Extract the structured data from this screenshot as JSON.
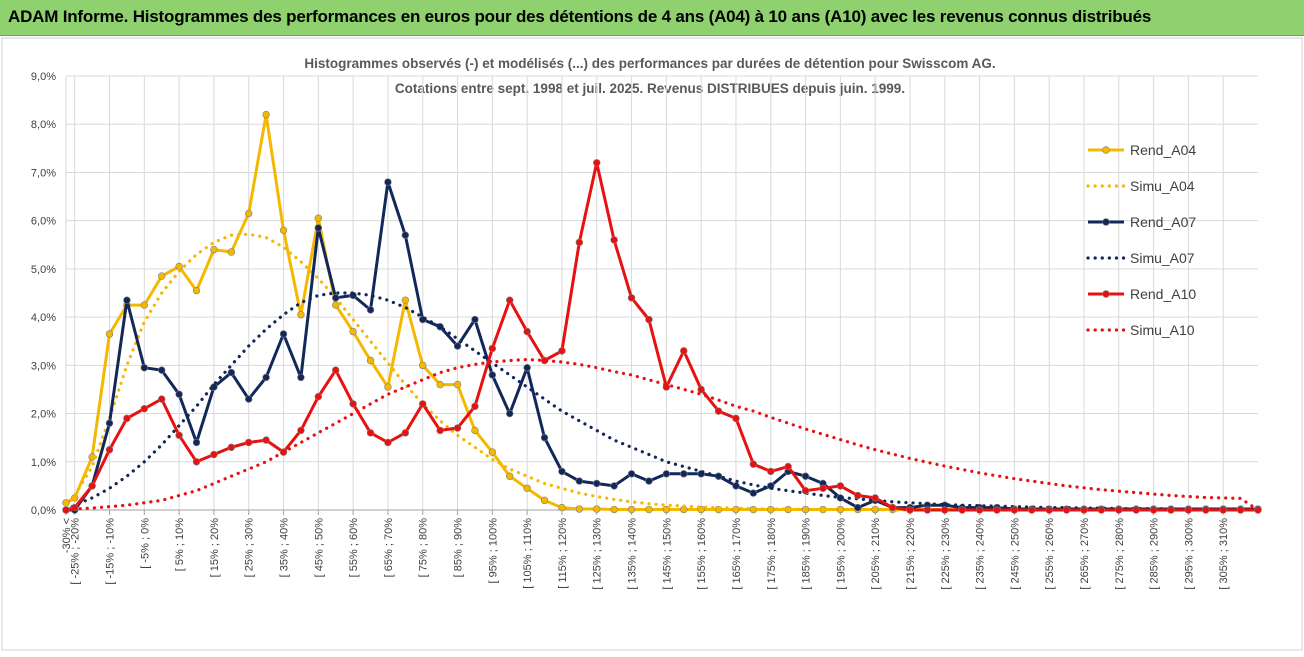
{
  "banner": {
    "title": "ADAM Informe. Histogrammes des performances en euros pour des détentions de 4 ans (A04) à 10 ans (A10) avec les revenus connus distribués"
  },
  "colors": {
    "a04": "#f5b800",
    "a07": "#12285a",
    "a10": "#e81010",
    "grid": "#d9d9d9",
    "banner_bg": "#8fd16f"
  },
  "chart_data": {
    "type": "line",
    "title_line1": "Histogrammes observés (-) et modélisés (...) des performances par durées de détention pour Swisscom AG.",
    "title_line2": "Cotations entre sept. 1998 et juil. 2025. Revenus DISTRIBUES depuis juin. 1999.",
    "xlabel": "",
    "ylabel": "",
    "ylim": [
      0,
      9
    ],
    "y_ticks": [
      "0,0%",
      "1,0%",
      "2,0%",
      "3,0%",
      "4,0%",
      "5,0%",
      "6,0%",
      "7,0%",
      "8,0%",
      "9,0%"
    ],
    "grid": true,
    "legend_position": "right",
    "categories": [
      "-30% <",
      "[ -25% ; -20%",
      "[ -15% ; -10%",
      "[ -5% ; 0%",
      "[ 5% ; 10%",
      "[ 15% ; 20%",
      "[ 25% ; 30%",
      "[ 35% ; 40%",
      "[ 45% ; 50%",
      "[ 55% ; 60%",
      "[ 65% ; 70%",
      "[ 75% ; 80%",
      "[ 85% ; 90%",
      "[ 95% ; 100%",
      "[ 105% ; 110%",
      "[ 115% ; 120%",
      "[ 125% ; 130%",
      "[ 135% ; 140%",
      "[ 145% ; 150%",
      "[ 155% ; 160%",
      "[ 165% ; 170%",
      "[ 175% ; 180%",
      "[ 185% ; 190%",
      "[ 195% ; 200%",
      "[ 205% ; 210%",
      "[ 215% ; 220%",
      "[ 225% ; 230%",
      "[ 235% ; 240%",
      "[ 245% ; 250%",
      "[ 255% ; 260%",
      "[ 265% ; 270%",
      "[ 275% ; 280%",
      "[ 285% ; 290%",
      "[ 295% ; 300%",
      "[ 305% ; 310%"
    ],
    "x": [
      -30,
      -27.5,
      -22.5,
      -17.5,
      -12.5,
      -7.5,
      -2.5,
      2.5,
      7.5,
      12.5,
      17.5,
      22.5,
      27.5,
      32.5,
      37.5,
      42.5,
      47.5,
      52.5,
      57.5,
      62.5,
      67.5,
      72.5,
      77.5,
      82.5,
      87.5,
      92.5,
      97.5,
      102.5,
      107.5,
      112.5,
      117.5,
      122.5,
      127.5,
      132.5,
      137.5,
      142.5,
      147.5,
      152.5,
      157.5,
      162.5,
      167.5,
      172.5,
      177.5,
      182.5,
      187.5,
      192.5,
      197.5,
      202.5,
      207.5,
      212.5,
      217.5,
      222.5,
      227.5,
      232.5,
      237.5,
      242.5,
      247.5,
      252.5,
      257.5,
      262.5,
      267.5,
      272.5,
      277.5,
      282.5,
      287.5,
      292.5,
      297.5,
      302.5,
      307.5,
      312.5
    ],
    "series": [
      {
        "name": "Rend_A04",
        "style": "solid",
        "color": "#f5b800",
        "values": [
          0.15,
          0.25,
          1.1,
          3.65,
          4.25,
          4.25,
          4.85,
          5.05,
          4.55,
          5.4,
          5.35,
          6.15,
          8.2,
          5.8,
          4.05,
          6.05,
          4.25,
          3.7,
          3.1,
          2.55,
          4.35,
          3.0,
          2.6,
          2.6,
          1.65,
          1.2,
          0.7,
          0.45,
          0.2,
          0.05,
          0.02,
          0.02,
          0.01,
          0.01,
          0.01,
          0.01,
          0.01,
          0.01,
          0.01,
          0.01,
          0.01,
          0.01,
          0.01,
          0.01,
          0.01,
          0.01,
          0.01,
          0.01,
          0.01,
          0.01,
          0.01,
          0.01,
          0.01,
          0.01,
          0.01,
          0.01,
          0.01,
          0.01,
          0.01,
          0.01,
          0.01,
          0.01,
          0.01,
          0.01,
          0.01,
          0.01,
          0.01,
          0.01,
          0.01,
          0.01
        ]
      },
      {
        "name": "Simu_A04",
        "style": "dotted",
        "color": "#f5b800",
        "values": [
          0.1,
          0.3,
          0.9,
          1.9,
          3.0,
          3.9,
          4.5,
          4.95,
          5.3,
          5.55,
          5.7,
          5.72,
          5.65,
          5.45,
          5.15,
          4.8,
          4.4,
          3.95,
          3.5,
          3.05,
          2.6,
          2.2,
          1.85,
          1.55,
          1.3,
          1.05,
          0.85,
          0.7,
          0.55,
          0.45,
          0.35,
          0.28,
          0.22,
          0.17,
          0.13,
          0.1,
          0.08,
          0.06,
          0.05,
          0.04,
          0.03,
          0.02,
          0.02,
          0.01,
          0.01,
          0.01,
          0.01,
          0.01,
          0.0,
          0.0,
          0.0,
          0.0,
          0.0,
          0.0,
          0.0,
          0.0,
          0.0,
          0.0,
          0.0,
          0.0,
          0.0,
          0.0,
          0.0,
          0.0,
          0.0,
          0.0,
          0.0,
          0.0,
          0.0,
          0.0
        ]
      },
      {
        "name": "Rend_A07",
        "style": "solid",
        "color": "#12285a",
        "values": [
          0.0,
          0.0,
          0.5,
          1.8,
          4.35,
          2.95,
          2.9,
          2.4,
          1.4,
          2.55,
          2.85,
          2.3,
          2.75,
          3.65,
          2.75,
          5.85,
          4.4,
          4.45,
          4.15,
          6.8,
          5.7,
          3.95,
          3.8,
          3.4,
          3.95,
          2.8,
          2.0,
          2.95,
          1.5,
          0.8,
          0.6,
          0.55,
          0.5,
          0.75,
          0.6,
          0.75,
          0.75,
          0.75,
          0.7,
          0.5,
          0.35,
          0.5,
          0.8,
          0.7,
          0.55,
          0.25,
          0.05,
          0.2,
          0.05,
          0.05,
          0.1,
          0.1,
          0.05,
          0.05,
          0.05,
          0.02,
          0.02,
          0.02,
          0.02,
          0.02,
          0.02,
          0.02,
          0.02,
          0.02,
          0.02,
          0.02,
          0.02,
          0.02,
          0.02,
          0.02
        ]
      },
      {
        "name": "Simu_A07",
        "style": "dotted",
        "color": "#12285a",
        "values": [
          0.0,
          0.1,
          0.25,
          0.45,
          0.7,
          1.0,
          1.35,
          1.75,
          2.15,
          2.6,
          3.0,
          3.4,
          3.75,
          4.05,
          4.3,
          4.45,
          4.5,
          4.5,
          4.45,
          4.35,
          4.2,
          4.0,
          3.8,
          3.55,
          3.3,
          3.05,
          2.8,
          2.55,
          2.3,
          2.05,
          1.85,
          1.65,
          1.45,
          1.3,
          1.15,
          1.0,
          0.9,
          0.8,
          0.7,
          0.6,
          0.52,
          0.45,
          0.4,
          0.35,
          0.3,
          0.26,
          0.23,
          0.2,
          0.17,
          0.15,
          0.13,
          0.11,
          0.1,
          0.09,
          0.08,
          0.07,
          0.06,
          0.05,
          0.05,
          0.04,
          0.04,
          0.03,
          0.03,
          0.03,
          0.02,
          0.02,
          0.02,
          0.02,
          0.02,
          0.01
        ]
      },
      {
        "name": "Rend_A10",
        "style": "solid",
        "color": "#e81010",
        "values": [
          0.0,
          0.05,
          0.5,
          1.25,
          1.9,
          2.1,
          2.3,
          1.55,
          1.0,
          1.15,
          1.3,
          1.4,
          1.45,
          1.2,
          1.65,
          2.35,
          2.9,
          2.2,
          1.6,
          1.4,
          1.6,
          2.2,
          1.65,
          1.7,
          2.15,
          3.35,
          4.35,
          3.7,
          3.1,
          3.3,
          5.55,
          7.2,
          5.6,
          4.4,
          3.95,
          2.55,
          3.3,
          2.5,
          2.05,
          1.9,
          0.95,
          0.8,
          0.9,
          0.4,
          0.45,
          0.5,
          0.3,
          0.25,
          0.05,
          0.0,
          0.0,
          0.0,
          0.0,
          0.0,
          0.0,
          0.0,
          0.0,
          0.0,
          0.0,
          0.0,
          0.0,
          0.0,
          0.0,
          0.0,
          0.0,
          0.0,
          0.0,
          0.0,
          0.0,
          0.0
        ]
      },
      {
        "name": "Simu_A10",
        "style": "dotted",
        "color": "#e81010",
        "values": [
          0.0,
          0.02,
          0.04,
          0.07,
          0.1,
          0.15,
          0.2,
          0.3,
          0.4,
          0.55,
          0.7,
          0.85,
          1.0,
          1.2,
          1.4,
          1.6,
          1.8,
          2.0,
          2.2,
          2.4,
          2.55,
          2.7,
          2.85,
          2.95,
          3.02,
          3.07,
          3.1,
          3.12,
          3.1,
          3.07,
          3.02,
          2.95,
          2.87,
          2.8,
          2.7,
          2.6,
          2.5,
          2.4,
          2.28,
          2.15,
          2.05,
          1.92,
          1.8,
          1.68,
          1.57,
          1.46,
          1.35,
          1.25,
          1.16,
          1.07,
          0.99,
          0.91,
          0.84,
          0.77,
          0.71,
          0.65,
          0.6,
          0.55,
          0.5,
          0.46,
          0.42,
          0.39,
          0.36,
          0.33,
          0.3,
          0.28,
          0.26,
          0.25,
          0.24,
          0.0
        ]
      }
    ]
  }
}
